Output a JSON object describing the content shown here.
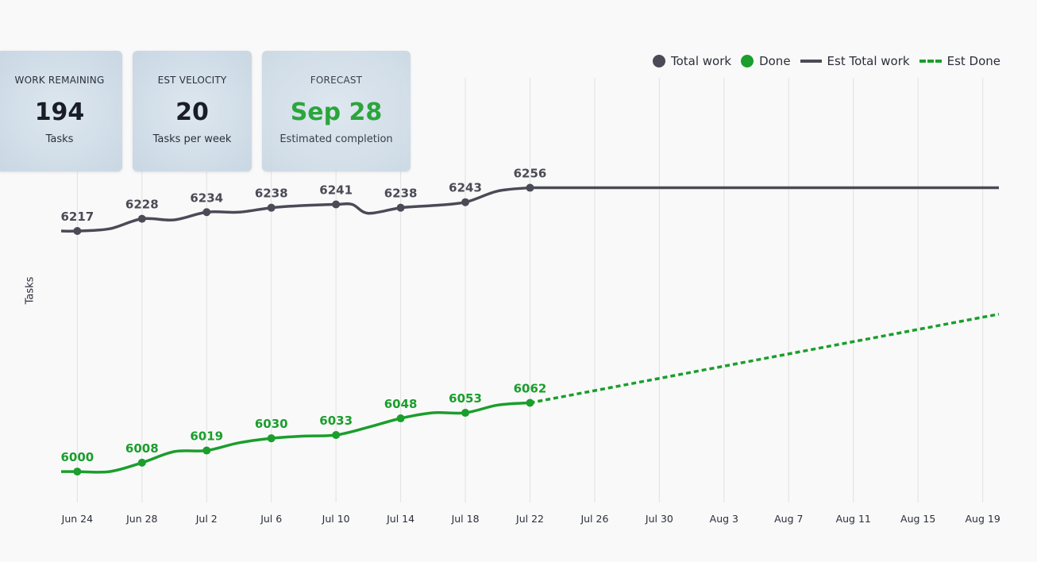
{
  "kpis": {
    "work_remaining": {
      "title": "WORK REMAINING",
      "value": "194",
      "sub": "Tasks"
    },
    "velocity": {
      "title": "EST VELOCITY",
      "value": "20",
      "sub": "Tasks per week"
    },
    "forecast": {
      "title": "FORECAST",
      "value": "Sep 28",
      "sub": "Estimated completion",
      "color": "#1a9e2c"
    }
  },
  "legend": {
    "total_work": "Total work",
    "done": "Done",
    "est_total_work": "Est Total work",
    "est_done": "Est Done"
  },
  "colors": {
    "total": "#4b4b57",
    "done": "#1a9e2c",
    "grid": "#e1e1e1"
  },
  "chart_data": {
    "type": "line",
    "ylabel": "Tasks",
    "x_ticks": [
      "Jun 24",
      "Jun 28",
      "Jul 2",
      "Jul 6",
      "Jul 10",
      "Jul 14",
      "Jul 18",
      "Jul 22",
      "Jul 26",
      "Jul 30",
      "Aug 3",
      "Aug 7",
      "Aug 11",
      "Aug 15",
      "Aug 19"
    ],
    "xlim": [
      "Jun 23",
      "Aug 20"
    ],
    "ylim": [
      5980,
      6275
    ],
    "grid": "vertical",
    "legend_position": "top-right",
    "series": [
      {
        "name": "Total work",
        "points": [
          [
            "Jun 23",
            6217
          ],
          [
            "Jun 24",
            6217
          ],
          [
            "Jun 26",
            6219
          ],
          [
            "Jun 28",
            6228
          ],
          [
            "Jun 30",
            6227
          ],
          [
            "Jul 2",
            6234
          ],
          [
            "Jul 4",
            6234
          ],
          [
            "Jul 6",
            6238
          ],
          [
            "Jul 8",
            6240
          ],
          [
            "Jul 10",
            6241
          ],
          [
            "Jul 11",
            6241
          ],
          [
            "Jul 12",
            6233
          ],
          [
            "Jul 14",
            6238
          ],
          [
            "Jul 16",
            6240
          ],
          [
            "Jul 18",
            6243
          ],
          [
            "Jul 20",
            6253
          ],
          [
            "Jul 22",
            6256
          ]
        ],
        "labels": [
          [
            "Jun 24",
            6217
          ],
          [
            "Jun 28",
            6228
          ],
          [
            "Jul 2",
            6234
          ],
          [
            "Jul 6",
            6238
          ],
          [
            "Jul 10",
            6241
          ],
          [
            "Jul 14",
            6238
          ],
          [
            "Jul 18",
            6243
          ],
          [
            "Jul 22",
            6256
          ]
        ]
      },
      {
        "name": "Done",
        "points": [
          [
            "Jun 23",
            6000
          ],
          [
            "Jun 24",
            6000
          ],
          [
            "Jun 26",
            6000
          ],
          [
            "Jun 28",
            6008
          ],
          [
            "Jun 30",
            6018
          ],
          [
            "Jul 2",
            6019
          ],
          [
            "Jul 4",
            6026
          ],
          [
            "Jul 6",
            6030
          ],
          [
            "Jul 8",
            6032
          ],
          [
            "Jul 10",
            6033
          ],
          [
            "Jul 12",
            6040
          ],
          [
            "Jul 14",
            6048
          ],
          [
            "Jul 16",
            6053
          ],
          [
            "Jul 18",
            6053
          ],
          [
            "Jul 20",
            6060
          ],
          [
            "Jul 22",
            6062
          ]
        ],
        "labels": [
          [
            "Jun 24",
            6000
          ],
          [
            "Jun 28",
            6008
          ],
          [
            "Jul 2",
            6019
          ],
          [
            "Jul 6",
            6030
          ],
          [
            "Jul 10",
            6033
          ],
          [
            "Jul 14",
            6048
          ],
          [
            "Jul 18",
            6053
          ],
          [
            "Jul 22",
            6062
          ]
        ]
      },
      {
        "name": "Est Total work",
        "points": [
          [
            "Jul 22",
            6256
          ],
          [
            "Aug 20",
            6256
          ]
        ]
      },
      {
        "name": "Est Done",
        "points": [
          [
            "Jul 22",
            6062
          ],
          [
            "Aug 20",
            6142
          ]
        ]
      }
    ]
  }
}
